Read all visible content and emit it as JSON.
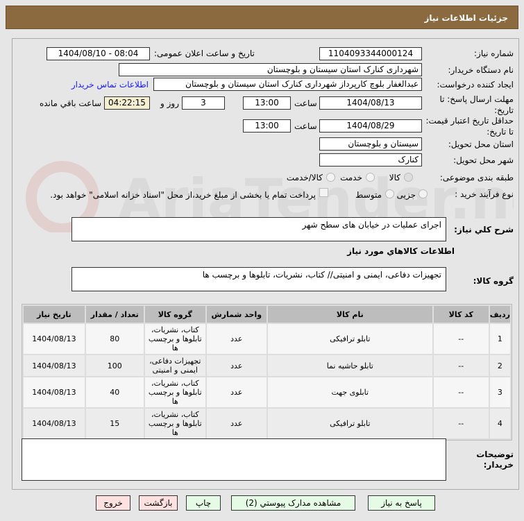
{
  "header": {
    "title": "جزئیات اطلاعات نیاز"
  },
  "form": {
    "need_number_label": "شماره نیاز:",
    "need_number": "1104093344000124",
    "announce_label": "تاریخ و ساعت اعلان عمومی:",
    "announce_value": "1404/08/10 - 08:04",
    "buyer_org_label": "نام دستگاه خریدار:",
    "buyer_org": "شهرداری کنارک استان سیستان و بلوچستان",
    "creator_label": "ایجاد کننده درخواست:",
    "creator": "عبدالغفار بلوچ کارپرداز شهرداری کنارک استان سیستان و بلوچستان",
    "contact_link": "اطلاعات تماس خریدار",
    "deadline_label": "مهلت ارسال پاسخ: تا تاریخ:",
    "deadline_date": "1404/08/13",
    "time_label": "ساعت",
    "deadline_time": "13:00",
    "days": "3",
    "days_label": "روز و",
    "remaining": "04:22:15",
    "remaining_label": "ساعت باقي مانده",
    "validity_label": "حداقل تاریخ اعتبار قیمت: تا تاریخ:",
    "validity_date": "1404/08/29",
    "validity_time": "13:00",
    "province_label": "استان محل تحویل:",
    "province": "سیستان و بلوچستان",
    "city_label": "شهر محل تحویل:",
    "city": "کنارک",
    "category_label": "طبقه بندی موضوعی:",
    "category_options": [
      "کالا",
      "خدمت",
      "کالا/خدمت"
    ],
    "category_selected": "کالا",
    "process_label": "نوع فرآیند خرید :",
    "process_options": [
      "جزیی",
      "متوسط"
    ],
    "payment_note": "پرداخت تمام یا بخشی از مبلغ خرید،از محل \"اسناد خزانه اسلامی\" خواهد بود.",
    "description_label": "شرح كلي نياز:",
    "description": "اجرای عملیات در خیابان های سطح شهر",
    "goods_info_title": "اطلاعات كالاهاي مورد نياز",
    "goods_group_label": "گروه کالا:",
    "goods_group": "تجهیزات دفاعی، ایمنی و امنیتی// کتاب، نشریات، تابلوها و برچسب ها",
    "buyer_notes_label": "توضیحات خریدار:",
    "buyer_notes": ""
  },
  "table": {
    "headers": [
      "ردیف",
      "کد کالا",
      "نام کالا",
      "واحد شمارش",
      "گروه کالا",
      "تعداد / مقدار",
      "تاریخ نیاز"
    ],
    "rows": [
      [
        "1",
        "--",
        "تابلو ترافیکی",
        "عدد",
        "کتاب، نشریات، تابلوها و برچسب ها",
        "80",
        "1404/08/13"
      ],
      [
        "2",
        "--",
        "تابلو حاشیه نما",
        "عدد",
        "تجهیزات دفاعی، ایمنی و امنیتی",
        "100",
        "1404/08/13"
      ],
      [
        "3",
        "--",
        "تابلوی جهت",
        "عدد",
        "کتاب، نشریات، تابلوها و برچسب ها",
        "40",
        "1404/08/13"
      ],
      [
        "4",
        "--",
        "تابلو ترافیکی",
        "عدد",
        "کتاب، نشریات، تابلوها و برچسب ها",
        "15",
        "1404/08/13"
      ]
    ]
  },
  "buttons": {
    "reply": "پاسخ به نیاز",
    "attachments": "مشاهده مدارک پیوستي (2)",
    "print": "چاپ",
    "back": "بازگشت",
    "exit": "خروج"
  },
  "watermark": {
    "text": "AriaTender.net",
    "color": "#c0392b"
  }
}
